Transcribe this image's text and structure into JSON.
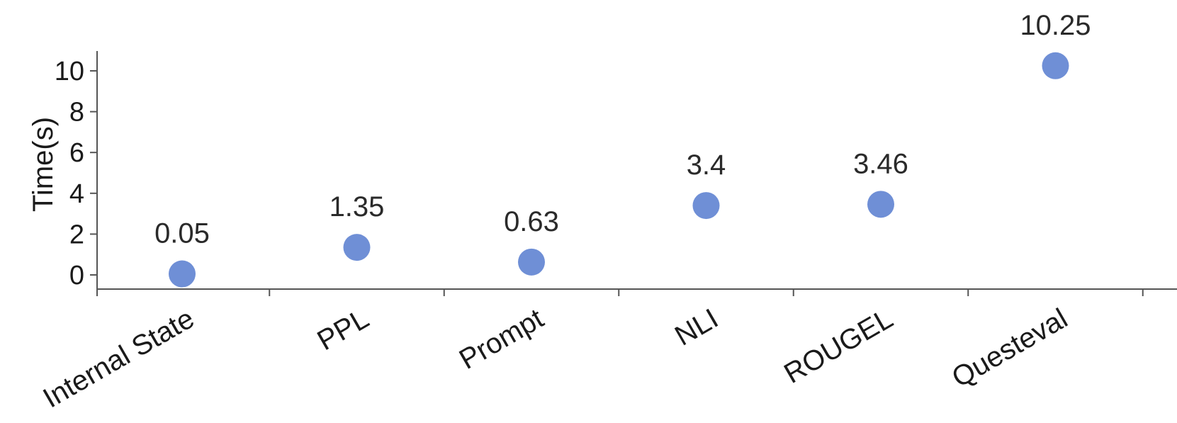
{
  "chart_data": {
    "type": "scatter",
    "categories": [
      "Internal State",
      "PPL",
      "Prompt",
      "NLI",
      "ROUGEL",
      "Questeval"
    ],
    "values": [
      0.05,
      1.35,
      0.63,
      3.4,
      3.46,
      10.25
    ],
    "data_labels": [
      "0.05",
      "1.35",
      "0.63",
      "3.4",
      "3.46",
      "10.25"
    ],
    "ylabel": "Time(s)",
    "ylim": [
      0,
      10
    ],
    "yticks": [
      0,
      2,
      4,
      6,
      8,
      10
    ],
    "grid": false,
    "point_color": "#6f8fd6"
  }
}
